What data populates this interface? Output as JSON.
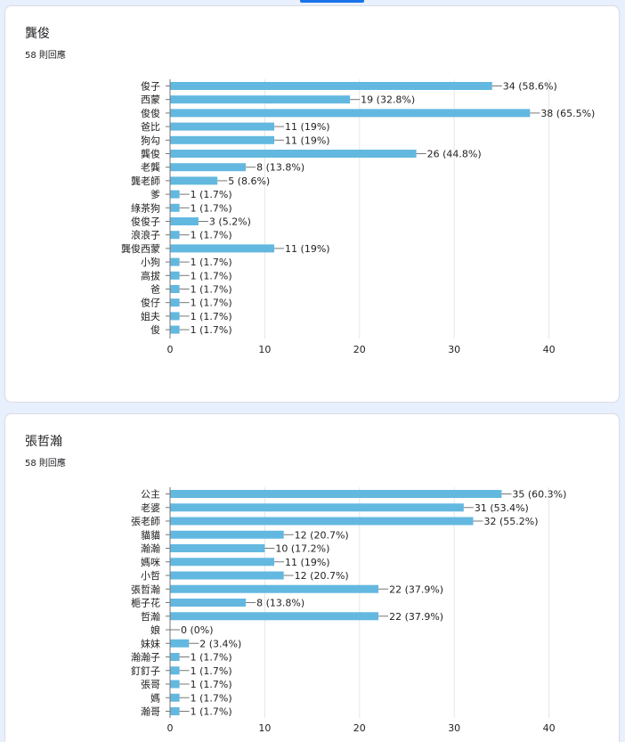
{
  "colors": {
    "bar": "#63b8e0",
    "grid": "#e6e6e6",
    "axis": "#777777",
    "text": "#222222",
    "page_bg": "#e8f0fe",
    "accent": "#1a73e8"
  },
  "questions": [
    {
      "title": "龔俊",
      "responses": "58 則回應"
    },
    {
      "title": "張哲瀚",
      "responses": "58 則回應"
    }
  ],
  "chart_data": [
    {
      "type": "bar",
      "orientation": "horizontal",
      "categories": [
        "俊子",
        "西蒙",
        "俊俊",
        "爸比",
        "狗勾",
        "龔俊",
        "老龔",
        "龔老師",
        "爹",
        "綠茶狗",
        "俊俊子",
        "浪浪子",
        "龔俊西蒙",
        "小狗",
        "高拔",
        "爸",
        "俊仔",
        "姐夫",
        "俊"
      ],
      "values": [
        34,
        19,
        38,
        11,
        11,
        26,
        8,
        5,
        1,
        1,
        3,
        1,
        11,
        1,
        1,
        1,
        1,
        1,
        1
      ],
      "value_labels": [
        "34 (58.6%)",
        "19 (32.8%)",
        "38 (65.5%)",
        "11 (19%)",
        "11 (19%)",
        "26 (44.8%)",
        "8 (13.8%)",
        "5 (8.6%)",
        "1 (1.7%)",
        "1 (1.7%)",
        "3 (5.2%)",
        "1 (1.7%)",
        "11 (19%)",
        "1 (1.7%)",
        "1 (1.7%)",
        "1 (1.7%)",
        "1 (1.7%)",
        "1 (1.7%)",
        "1 (1.7%)"
      ],
      "xlim": [
        0,
        40
      ],
      "xticks": [
        "0",
        "10",
        "20",
        "30",
        "40"
      ],
      "grid": true
    },
    {
      "type": "bar",
      "orientation": "horizontal",
      "categories": [
        "公主",
        "老婆",
        "張老師",
        "貓貓",
        "瀚瀚",
        "媽咪",
        "小哲",
        "張哲瀚",
        "梔子花",
        "哲瀚",
        "娘",
        "妹妹",
        "瀚瀚子",
        "釘釘子",
        "張哥",
        "媽",
        "瀚哥"
      ],
      "values": [
        35,
        31,
        32,
        12,
        10,
        11,
        12,
        22,
        8,
        22,
        0,
        2,
        1,
        1,
        1,
        1,
        1
      ],
      "value_labels": [
        "35 (60.3%)",
        "31 (53.4%)",
        "32 (55.2%)",
        "12 (20.7%)",
        "10 (17.2%)",
        "11 (19%)",
        "12 (20.7%)",
        "22 (37.9%)",
        "8 (13.8%)",
        "22 (37.9%)",
        "0 (0%)",
        "2 (3.4%)",
        "1 (1.7%)",
        "1 (1.7%)",
        "1 (1.7%)",
        "1 (1.7%)",
        "1 (1.7%)"
      ],
      "xlim": [
        0,
        40
      ],
      "xticks": [
        "0",
        "10",
        "20",
        "30",
        "40"
      ],
      "grid": true
    }
  ]
}
